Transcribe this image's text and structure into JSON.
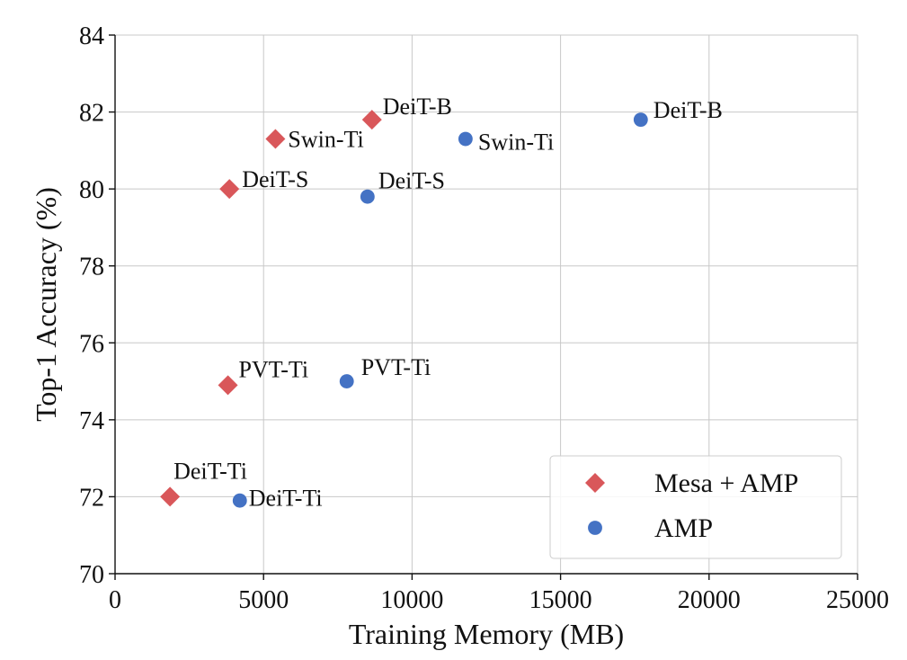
{
  "chart_data": {
    "type": "scatter",
    "title": "",
    "xlabel": "Training Memory (MB)",
    "ylabel": "Top-1 Accuracy (%)",
    "xlim": [
      0,
      25000
    ],
    "ylim": [
      70,
      84
    ],
    "xticks": [
      0,
      5000,
      10000,
      15000,
      20000,
      25000
    ],
    "yticks": [
      70,
      72,
      74,
      76,
      78,
      80,
      82,
      84
    ],
    "grid": true,
    "legend_position": "bottom-right",
    "series": [
      {
        "name": "Mesa + AMP",
        "marker": "diamond",
        "color": "#d9575a",
        "points": [
          {
            "label": "DeiT-Ti",
            "x": 1850,
            "y": 72.0
          },
          {
            "label": "PVT-Ti",
            "x": 3800,
            "y": 74.9
          },
          {
            "label": "DeiT-S",
            "x": 3850,
            "y": 80.0
          },
          {
            "label": "Swin-Ti",
            "x": 5400,
            "y": 81.3
          },
          {
            "label": "DeiT-B",
            "x": 8650,
            "y": 81.8
          }
        ]
      },
      {
        "name": "AMP",
        "marker": "circle",
        "color": "#4472c4",
        "points": [
          {
            "label": "DeiT-Ti",
            "x": 4200,
            "y": 71.9
          },
          {
            "label": "PVT-Ti",
            "x": 7800,
            "y": 75.0
          },
          {
            "label": "DeiT-S",
            "x": 8500,
            "y": 79.8
          },
          {
            "label": "Swin-Ti",
            "x": 11800,
            "y": 81.3
          },
          {
            "label": "DeiT-B",
            "x": 17700,
            "y": 81.8
          }
        ]
      }
    ]
  }
}
